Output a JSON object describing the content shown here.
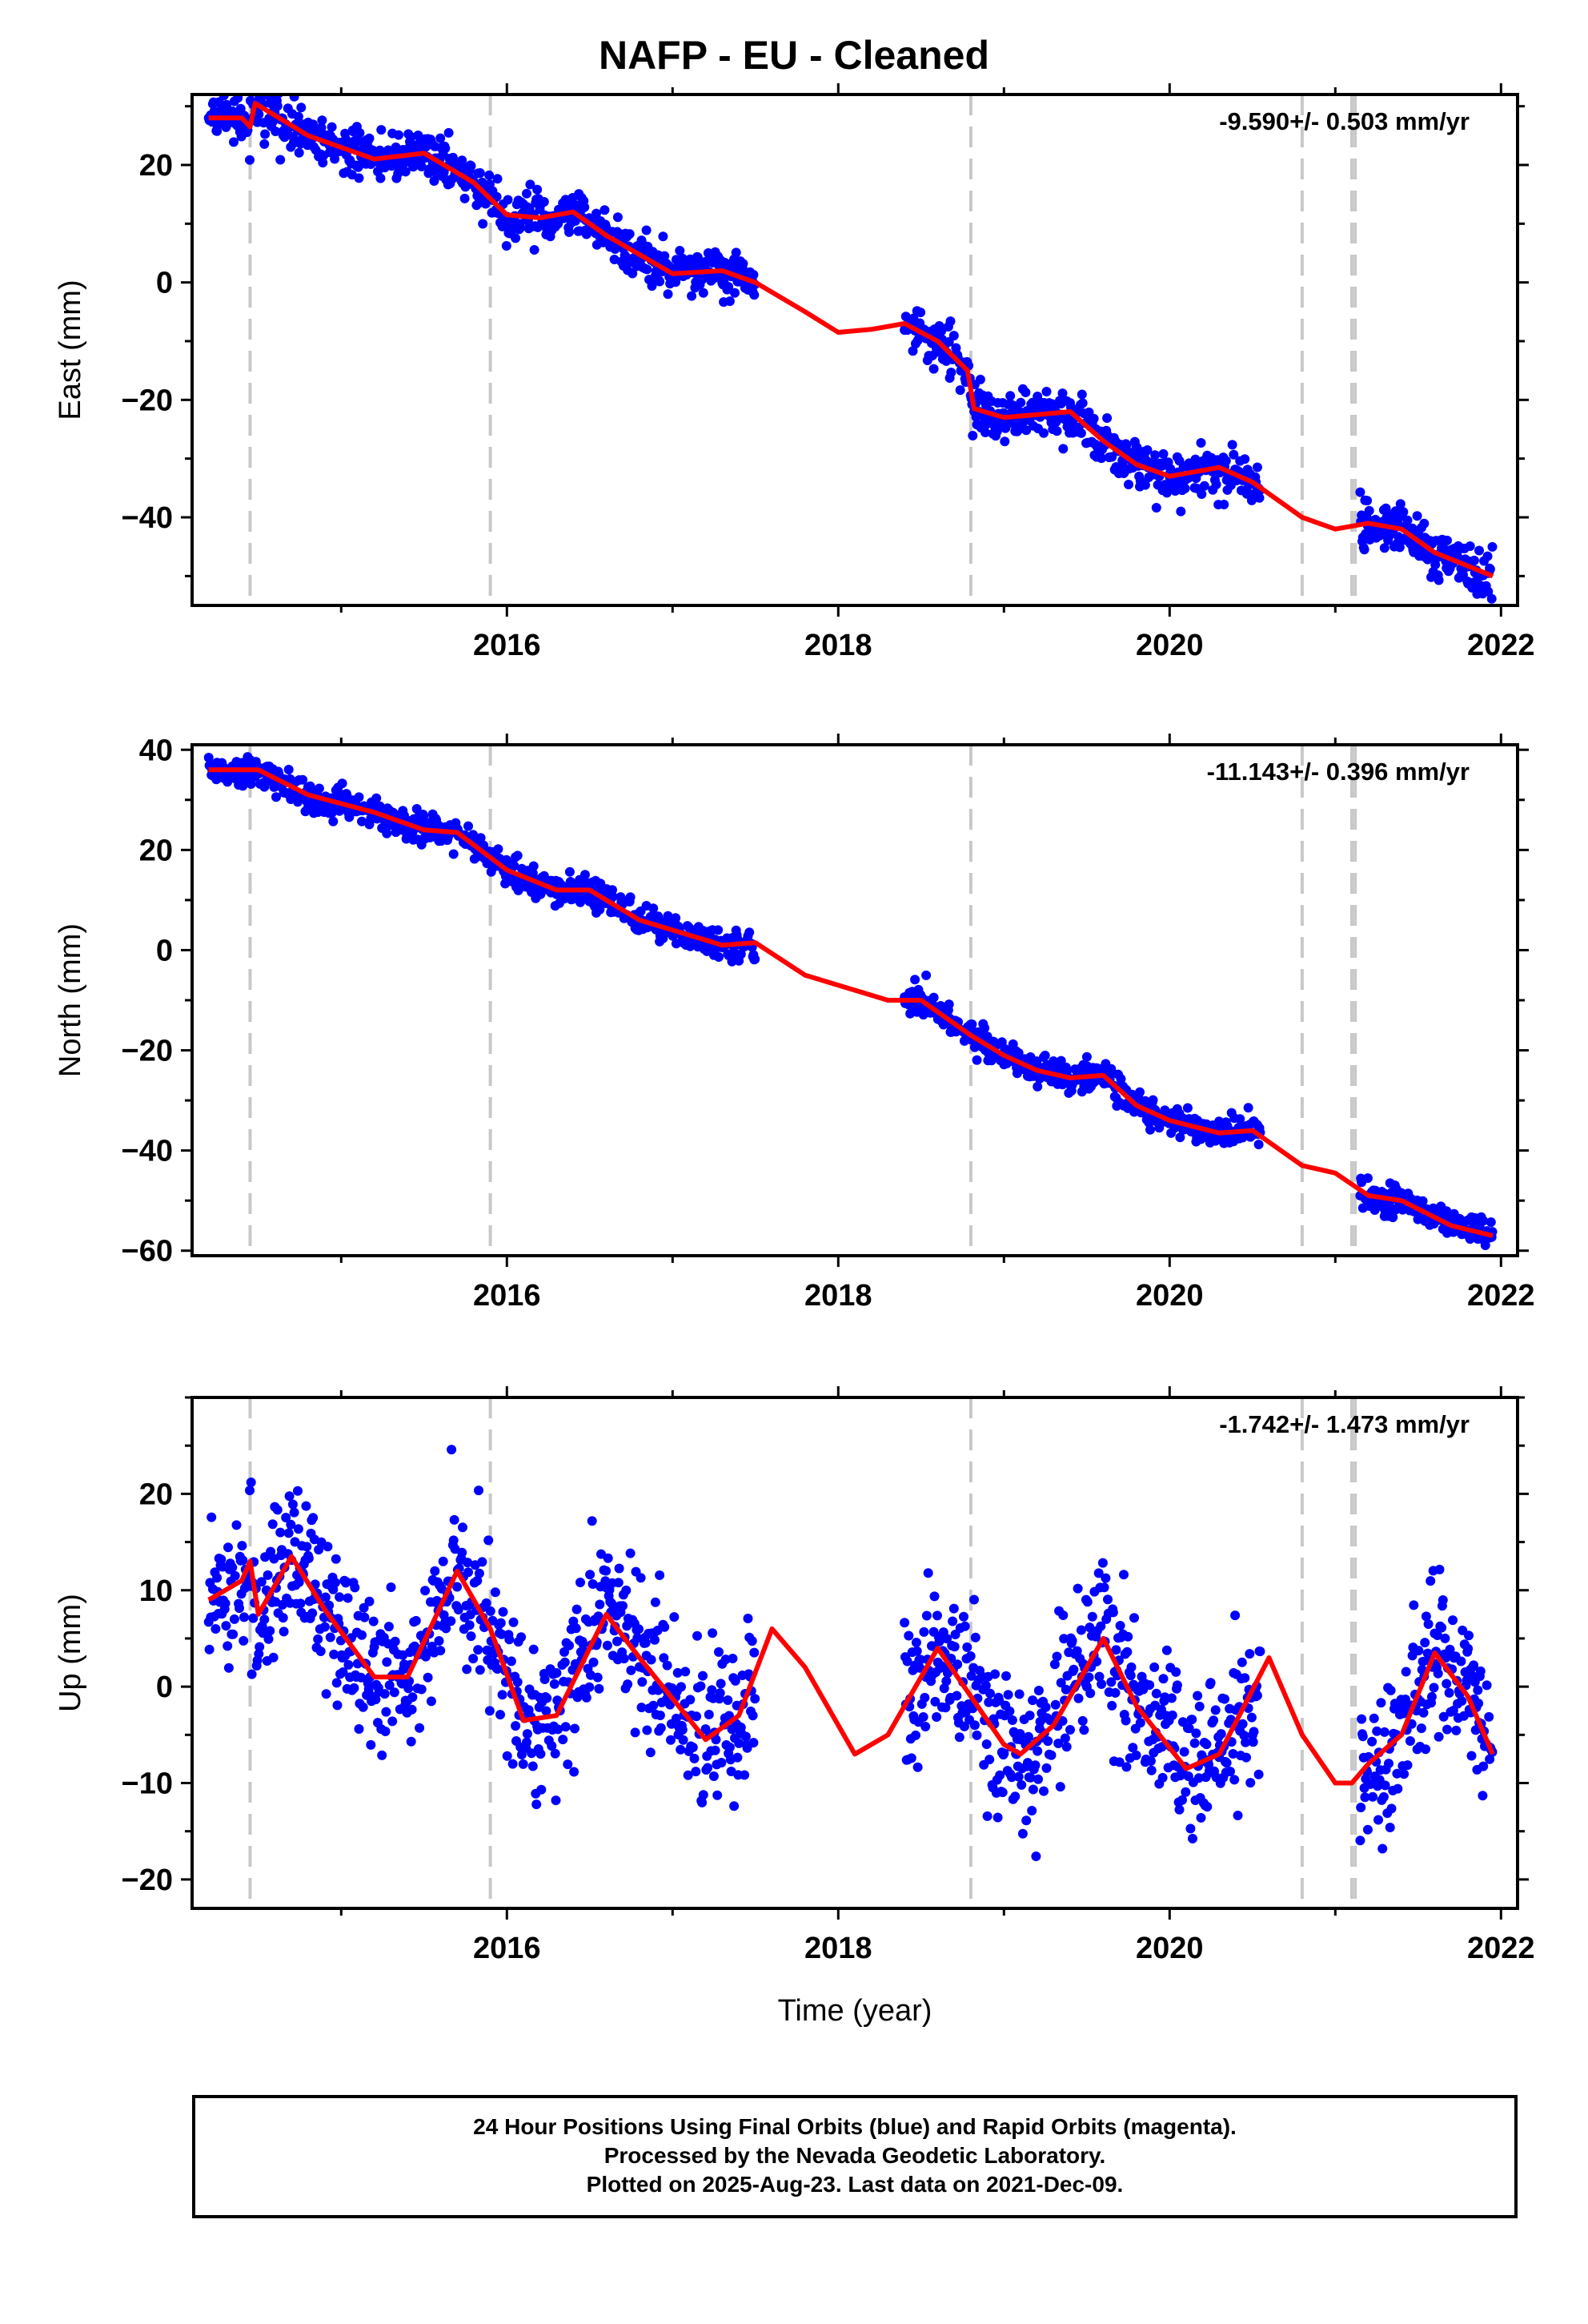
{
  "page": {
    "title": "NAFP  - EU - Cleaned",
    "footer": [
      "24 Hour Positions Using Final Orbits (blue) and Rapid Orbits (magenta).",
      "Processed by the Nevada Geodetic Laboratory.",
      "Plotted on 2025-Aug-23. Last data on 2021-Dec-09."
    ]
  },
  "colors": {
    "points": "#0000ff",
    "model": "#ff0000",
    "dashed": "#c8c8c8",
    "axis": "#000000"
  },
  "chart_data": [
    {
      "type": "scatter",
      "ylabel": "East (mm)",
      "xlabel": "",
      "annotation": "-9.590+/- 0.503 mm/yr",
      "xlim": [
        2014.1,
        2022.1
      ],
      "ylim": [
        -55,
        32
      ],
      "x_ticks": [
        2016,
        2018,
        2020,
        2022
      ],
      "y_ticks": [
        -40,
        -20,
        0,
        20
      ],
      "grid": false,
      "breaks": [
        2014.45,
        2015.9,
        2018.8,
        2020.8,
        2021.1,
        2021.12
      ],
      "data_segments": [
        [
          2014.2,
          2017.5
        ],
        [
          2018.4,
          2020.55
        ],
        [
          2021.15,
          2021.95
        ]
      ],
      "model_curve": [
        [
          2014.2,
          28
        ],
        [
          2014.4,
          28
        ],
        [
          2014.45,
          26.5
        ],
        [
          2014.48,
          30.5
        ],
        [
          2014.8,
          25
        ],
        [
          2015.2,
          21
        ],
        [
          2015.5,
          22
        ],
        [
          2015.8,
          17
        ],
        [
          2016.0,
          11.5
        ],
        [
          2016.2,
          11
        ],
        [
          2016.4,
          12
        ],
        [
          2016.6,
          8
        ],
        [
          2017.0,
          1.5
        ],
        [
          2017.3,
          2
        ],
        [
          2017.5,
          0
        ],
        [
          2017.8,
          -5
        ],
        [
          2018.0,
          -8.5
        ],
        [
          2018.2,
          -8
        ],
        [
          2018.4,
          -7
        ],
        [
          2018.6,
          -10
        ],
        [
          2018.78,
          -15
        ],
        [
          2018.82,
          -21.5
        ],
        [
          2019.0,
          -23
        ],
        [
          2019.2,
          -22.5
        ],
        [
          2019.4,
          -22
        ],
        [
          2019.6,
          -27
        ],
        [
          2019.8,
          -31
        ],
        [
          2020.0,
          -33
        ],
        [
          2020.3,
          -31.5
        ],
        [
          2020.5,
          -34
        ],
        [
          2020.8,
          -40
        ],
        [
          2021.0,
          -42
        ],
        [
          2021.2,
          -41
        ],
        [
          2021.4,
          -42
        ],
        [
          2021.6,
          -46
        ],
        [
          2021.95,
          -50
        ]
      ],
      "model_noise": 2.0
    },
    {
      "type": "scatter",
      "ylabel": "North (mm)",
      "xlabel": "",
      "annotation": "-11.143+/- 0.396 mm/yr",
      "xlim": [
        2014.1,
        2022.1
      ],
      "ylim": [
        -61,
        41
      ],
      "x_ticks": [
        2016,
        2018,
        2020,
        2022
      ],
      "y_ticks": [
        -60,
        -40,
        -20,
        0,
        20,
        40
      ],
      "grid": false,
      "breaks": [
        2014.45,
        2015.9,
        2018.8,
        2020.8,
        2021.1,
        2021.12
      ],
      "data_segments": [
        [
          2014.2,
          2017.5
        ],
        [
          2018.4,
          2020.55
        ],
        [
          2021.15,
          2021.95
        ]
      ],
      "model_curve": [
        [
          2014.2,
          36
        ],
        [
          2014.5,
          36
        ],
        [
          2014.8,
          31
        ],
        [
          2015.2,
          27.5
        ],
        [
          2015.5,
          24
        ],
        [
          2015.7,
          23.5
        ],
        [
          2016.0,
          16
        ],
        [
          2016.3,
          12
        ],
        [
          2016.5,
          12
        ],
        [
          2016.8,
          6
        ],
        [
          2017.0,
          4
        ],
        [
          2017.3,
          1
        ],
        [
          2017.5,
          1.5
        ],
        [
          2017.8,
          -5
        ],
        [
          2018.0,
          -7
        ],
        [
          2018.3,
          -10
        ],
        [
          2018.5,
          -10
        ],
        [
          2018.8,
          -17
        ],
        [
          2019.0,
          -21
        ],
        [
          2019.2,
          -24
        ],
        [
          2019.4,
          -25.5
        ],
        [
          2019.6,
          -25
        ],
        [
          2019.8,
          -31
        ],
        [
          2020.0,
          -34
        ],
        [
          2020.3,
          -36.5
        ],
        [
          2020.5,
          -36
        ],
        [
          2020.8,
          -43
        ],
        [
          2021.0,
          -44.5
        ],
        [
          2021.2,
          -49
        ],
        [
          2021.4,
          -50
        ],
        [
          2021.7,
          -55
        ],
        [
          2021.95,
          -57
        ]
      ],
      "model_noise": 1.5
    },
    {
      "type": "scatter",
      "ylabel": "Up (mm)",
      "xlabel": "Time (year)",
      "annotation": "-1.742+/- 1.473 mm/yr",
      "xlim": [
        2014.1,
        2022.1
      ],
      "ylim": [
        -23,
        30
      ],
      "x_ticks": [
        2016,
        2018,
        2020,
        2022
      ],
      "y_ticks": [
        -20,
        -10,
        0,
        10,
        20
      ],
      "grid": false,
      "breaks": [
        2014.45,
        2015.9,
        2018.8,
        2020.8,
        2021.1,
        2021.12
      ],
      "data_segments": [
        [
          2014.2,
          2017.5
        ],
        [
          2018.4,
          2020.55
        ],
        [
          2021.15,
          2021.95
        ]
      ],
      "model_curve": [
        [
          2014.2,
          9
        ],
        [
          2014.4,
          11
        ],
        [
          2014.45,
          13
        ],
        [
          2014.5,
          7.5
        ],
        [
          2014.7,
          13.5
        ],
        [
          2014.9,
          8
        ],
        [
          2015.2,
          1
        ],
        [
          2015.4,
          1
        ],
        [
          2015.7,
          12
        ],
        [
          2015.9,
          6
        ],
        [
          2016.1,
          -3.5
        ],
        [
          2016.3,
          -3
        ],
        [
          2016.6,
          7.5
        ],
        [
          2016.8,
          3
        ],
        [
          2017.2,
          -5.5
        ],
        [
          2017.4,
          -3
        ],
        [
          2017.6,
          6
        ],
        [
          2017.8,
          2
        ],
        [
          2018.1,
          -7
        ],
        [
          2018.3,
          -5
        ],
        [
          2018.6,
          4
        ],
        [
          2018.8,
          -1
        ],
        [
          2019.0,
          -6
        ],
        [
          2019.1,
          -7
        ],
        [
          2019.3,
          -4
        ],
        [
          2019.6,
          5
        ],
        [
          2019.8,
          -2
        ],
        [
          2020.1,
          -8.5
        ],
        [
          2020.3,
          -7
        ],
        [
          2020.6,
          3
        ],
        [
          2020.8,
          -5
        ],
        [
          2021.0,
          -10
        ],
        [
          2021.1,
          -10
        ],
        [
          2021.2,
          -8
        ],
        [
          2021.4,
          -5
        ],
        [
          2021.6,
          3.5
        ],
        [
          2021.8,
          -1
        ],
        [
          2021.95,
          -7
        ]
      ],
      "model_noise": 4.0
    }
  ]
}
